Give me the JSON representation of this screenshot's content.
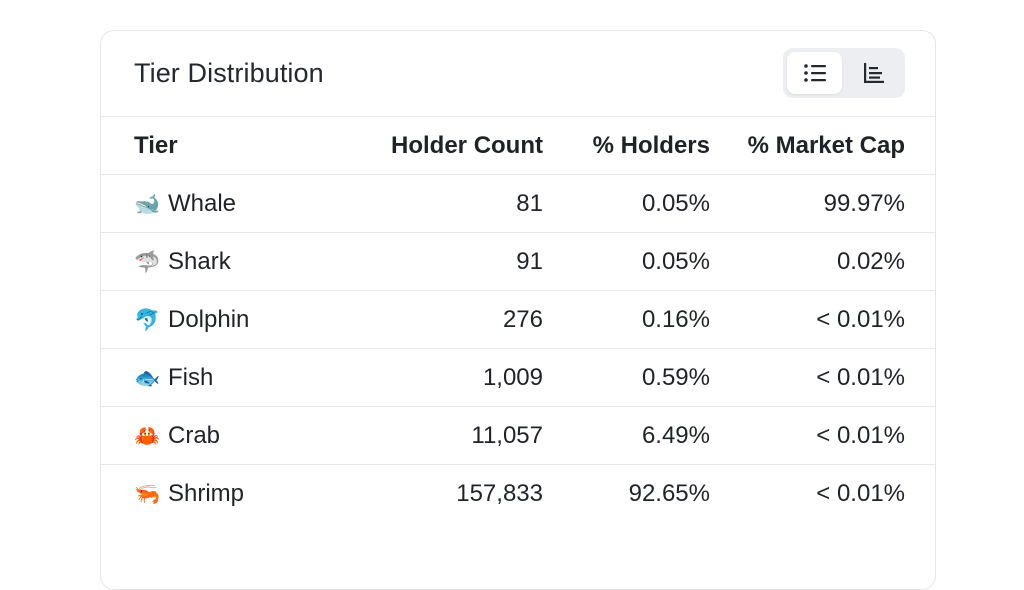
{
  "card": {
    "title": "Tier Distribution"
  },
  "view_toggle": {
    "options": [
      {
        "name": "list",
        "icon": "list-icon",
        "active": true
      },
      {
        "name": "chart",
        "icon": "bar-chart-icon",
        "active": false
      }
    ]
  },
  "table": {
    "headers": [
      "Tier",
      "Holder Count",
      "% Holders",
      "% Market Cap"
    ],
    "rows": [
      {
        "emoji": "🐋",
        "icon": "whale-icon",
        "tier": "Whale",
        "count": "81",
        "holders": "0.05%",
        "mcap": "99.97%"
      },
      {
        "emoji": "🦈",
        "icon": "shark-icon",
        "tier": "Shark",
        "count": "91",
        "holders": "0.05%",
        "mcap": "0.02%"
      },
      {
        "emoji": "🐬",
        "icon": "dolphin-icon",
        "tier": "Dolphin",
        "count": "276",
        "holders": "0.16%",
        "mcap": "< 0.01%"
      },
      {
        "emoji": "🐟",
        "icon": "fish-icon",
        "tier": "Fish",
        "count": "1,009",
        "holders": "0.59%",
        "mcap": "< 0.01%"
      },
      {
        "emoji": "🦀",
        "icon": "crab-icon",
        "tier": "Crab",
        "count": "11,057",
        "holders": "6.49%",
        "mcap": "< 0.01%"
      },
      {
        "emoji": "🦐",
        "icon": "shrimp-icon",
        "tier": "Shrimp",
        "count": "157,833",
        "holders": "92.65%",
        "mcap": "< 0.01%"
      }
    ]
  },
  "colors": {
    "border": "#e6e8eb",
    "toggle_bg": "#eceef1",
    "text": "#1f2328"
  }
}
